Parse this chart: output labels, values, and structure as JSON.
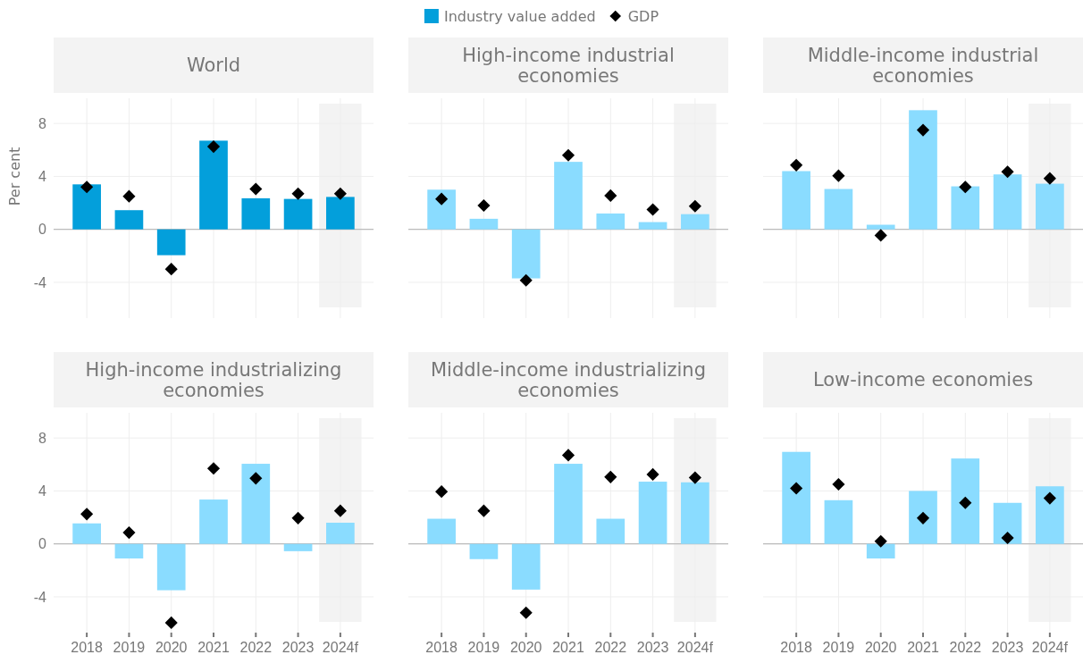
{
  "chart_data": [
    {
      "type": "bar",
      "title": "World",
      "ylabel": "Per cent",
      "categories": [
        "2018",
        "2019",
        "2020",
        "2021",
        "2022",
        "2023",
        "2024f"
      ],
      "ylim": [
        -6.7,
        9.9
      ],
      "yticks": [
        -4,
        0,
        4,
        8
      ],
      "grid": true,
      "legend": "top",
      "tick_labels": "y",
      "ref_lines": [
        {
          "axis": "y",
          "value": 0,
          "color": "#bbbbbb"
        }
      ],
      "bands": [
        {
          "axis": "x",
          "from": "2024f",
          "to": "2024f",
          "color": "#f3f3f3"
        }
      ],
      "series": [
        {
          "name": "Industry value added",
          "color": "#039fdb",
          "values": [
            3.4,
            1.45,
            -1.95,
            6.7,
            2.35,
            2.3,
            2.45
          ]
        },
        {
          "name": "GDP",
          "type": "scatter",
          "marker": "diamond",
          "color": "#000000",
          "values": [
            3.2,
            2.5,
            -3.0,
            6.25,
            3.05,
            2.7,
            2.7
          ]
        }
      ]
    },
    {
      "type": "bar",
      "title": "High-income industrial economies",
      "categories": [
        "2018",
        "2019",
        "2020",
        "2021",
        "2022",
        "2023",
        "2024f"
      ],
      "ylim": [
        -6.7,
        9.9
      ],
      "yticks": [
        -4,
        0,
        4,
        8
      ],
      "grid": true,
      "tick_labels": false,
      "ref_lines": [
        {
          "axis": "y",
          "value": 0,
          "color": "#bbbbbb"
        }
      ],
      "bands": [
        {
          "axis": "x",
          "from": "2024f",
          "to": "2024f",
          "color": "#f3f3f3"
        }
      ],
      "series": [
        {
          "color": "#8adcff",
          "values": [
            3.0,
            0.8,
            -3.7,
            5.1,
            1.2,
            0.55,
            1.15
          ]
        },
        {
          "type": "scatter",
          "marker": "diamond",
          "color": "#000000",
          "values": [
            2.3,
            1.8,
            -3.85,
            5.6,
            2.55,
            1.5,
            1.75
          ]
        }
      ]
    },
    {
      "type": "bar",
      "title": "Middle-income industrial economies",
      "categories": [
        "2018",
        "2019",
        "2020",
        "2021",
        "2022",
        "2023",
        "2024f"
      ],
      "ylim": [
        -6.7,
        9.9
      ],
      "yticks": [
        -4,
        0,
        4,
        8
      ],
      "grid": true,
      "tick_labels": false,
      "ref_lines": [
        {
          "axis": "y",
          "value": 0,
          "color": "#bbbbbb"
        }
      ],
      "bands": [
        {
          "axis": "x",
          "from": "2024f",
          "to": "2024f",
          "color": "#f3f3f3"
        }
      ],
      "series": [
        {
          "color": "#8adcff",
          "values": [
            4.4,
            3.05,
            0.35,
            9.0,
            3.25,
            4.15,
            3.45
          ]
        },
        {
          "type": "scatter",
          "marker": "diamond",
          "color": "#000000",
          "values": [
            4.85,
            4.05,
            -0.45,
            7.5,
            3.2,
            4.35,
            3.85
          ]
        }
      ]
    },
    {
      "type": "bar",
      "title": "High-income industrializing economies",
      "categories": [
        "2018",
        "2019",
        "2020",
        "2021",
        "2022",
        "2023",
        "2024f"
      ],
      "ylim": [
        -6.7,
        9.9
      ],
      "yticks": [
        -4,
        0,
        4,
        8
      ],
      "grid": true,
      "ref_lines": [
        {
          "axis": "y",
          "value": 0,
          "color": "#bbbbbb"
        }
      ],
      "bands": [
        {
          "axis": "x",
          "from": "2024f",
          "to": "2024f",
          "color": "#f3f3f3"
        }
      ],
      "series": [
        {
          "color": "#8adcff",
          "values": [
            1.55,
            -1.1,
            -3.5,
            3.35,
            6.05,
            -0.55,
            1.6
          ]
        },
        {
          "type": "scatter",
          "marker": "diamond",
          "color": "#000000",
          "values": [
            2.25,
            0.85,
            -5.95,
            5.7,
            4.95,
            1.95,
            2.5
          ]
        }
      ]
    },
    {
      "type": "bar",
      "title": "Middle-income industrializing economies",
      "categories": [
        "2018",
        "2019",
        "2020",
        "2021",
        "2022",
        "2023",
        "2024f"
      ],
      "ylim": [
        -6.7,
        9.9
      ],
      "yticks": [
        -4,
        0,
        4,
        8
      ],
      "grid": true,
      "tick_labels": "x",
      "ref_lines": [
        {
          "axis": "y",
          "value": 0,
          "color": "#bbbbbb"
        }
      ],
      "bands": [
        {
          "axis": "x",
          "from": "2024f",
          "to": "2024f",
          "color": "#f3f3f3"
        }
      ],
      "series": [
        {
          "color": "#8adcff",
          "values": [
            1.9,
            -1.15,
            -3.45,
            6.05,
            1.9,
            4.7,
            4.65
          ]
        },
        {
          "type": "scatter",
          "marker": "diamond",
          "color": "#000000",
          "values": [
            3.95,
            2.5,
            -5.2,
            6.7,
            5.05,
            5.25,
            5.0
          ]
        }
      ]
    },
    {
      "type": "bar",
      "title": "Low-income economies",
      "categories": [
        "2018",
        "2019",
        "2020",
        "2021",
        "2022",
        "2023",
        "2024f"
      ],
      "ylim": [
        -6.7,
        9.9
      ],
      "yticks": [
        -4,
        0,
        4,
        8
      ],
      "grid": true,
      "tick_labels": "x",
      "ref_lines": [
        {
          "axis": "y",
          "value": 0,
          "color": "#bbbbbb"
        }
      ],
      "bands": [
        {
          "axis": "x",
          "from": "2024f",
          "to": "2024f",
          "color": "#f3f3f3"
        }
      ],
      "series": [
        {
          "color": "#8adcff",
          "values": [
            6.95,
            3.3,
            -1.1,
            4.0,
            6.45,
            3.1,
            4.35
          ]
        },
        {
          "type": "scatter",
          "marker": "diamond",
          "color": "#000000",
          "values": [
            4.2,
            4.5,
            0.2,
            1.95,
            3.1,
            0.45,
            3.45
          ]
        }
      ]
    }
  ]
}
